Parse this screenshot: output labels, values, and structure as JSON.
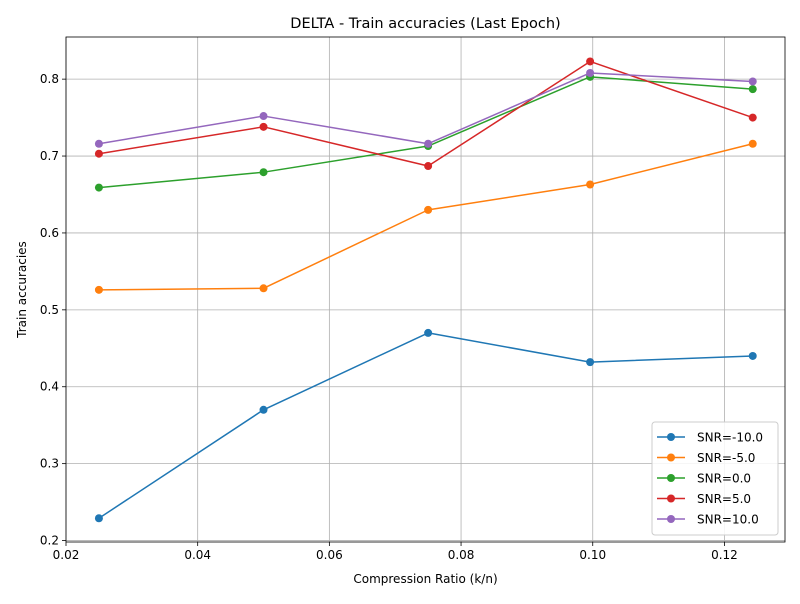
{
  "chart_data": {
    "type": "line",
    "title": "DELTA - Train accuracies (Last Epoch)",
    "xlabel": "Compression Ratio (k/n)",
    "ylabel": "Train accuracies",
    "xlim": [
      0.02,
      0.1292
    ],
    "ylim": [
      0.1981,
      0.8548
    ],
    "xticks": [
      "0.02",
      "0.04",
      "0.06",
      "0.08",
      "0.10",
      "0.12"
    ],
    "yticks": [
      "0.2",
      "0.3",
      "0.4",
      "0.5",
      "0.6",
      "0.7",
      "0.8"
    ],
    "grid": true,
    "legend_position": "lower right",
    "x": [
      0.025,
      0.05,
      0.075,
      0.0996,
      0.1243
    ],
    "series": [
      {
        "name": "SNR=-10.0",
        "color": "#1f77b4",
        "values": [
          0.229,
          0.37,
          0.47,
          0.432,
          0.44
        ]
      },
      {
        "name": "SNR=-5.0",
        "color": "#ff7f0e",
        "values": [
          0.526,
          0.528,
          0.63,
          0.663,
          0.716
        ]
      },
      {
        "name": "SNR=0.0",
        "color": "#2ca02c",
        "values": [
          0.659,
          0.679,
          0.713,
          0.803,
          0.787
        ]
      },
      {
        "name": "SNR=5.0",
        "color": "#d62728",
        "values": [
          0.703,
          0.738,
          0.687,
          0.823,
          0.75
        ]
      },
      {
        "name": "SNR=10.0",
        "color": "#9467bd",
        "values": [
          0.716,
          0.752,
          0.716,
          0.808,
          0.797
        ]
      }
    ]
  }
}
